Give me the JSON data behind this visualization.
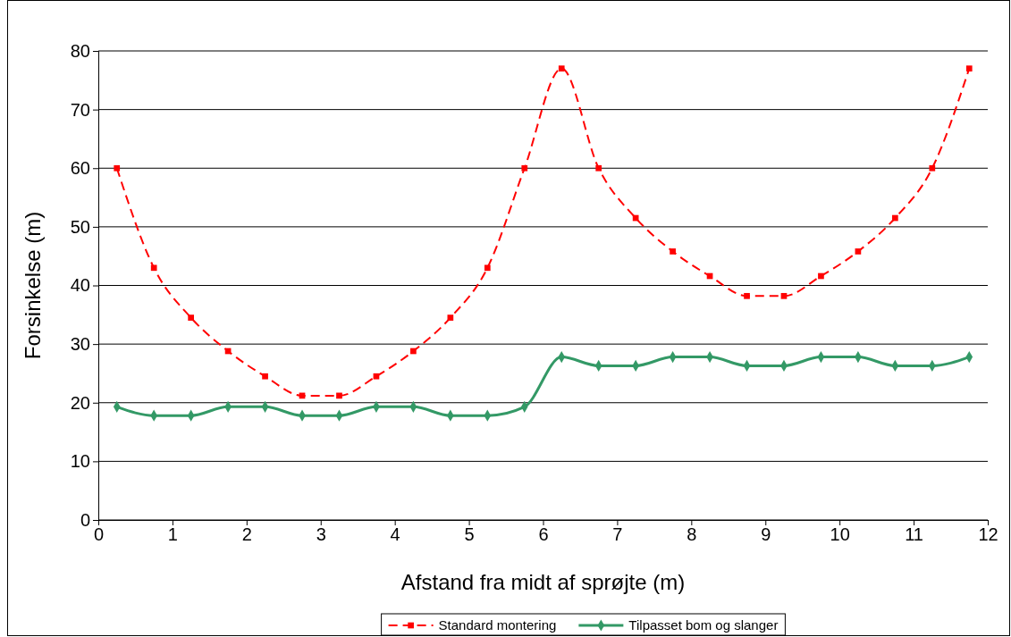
{
  "chart_data": {
    "type": "line",
    "xlabel": "Afstand fra midt af sprøjte (m)",
    "ylabel": "Forsinkelse (m)",
    "x": [
      0.25,
      0.75,
      1.25,
      1.75,
      2.25,
      2.75,
      3.25,
      3.75,
      4.25,
      4.75,
      5.25,
      5.75,
      6.25,
      6.75,
      7.25,
      7.75,
      8.25,
      8.75,
      9.25,
      9.75,
      10.25,
      10.75,
      11.25,
      11.75
    ],
    "xlim": [
      0,
      12
    ],
    "xticks": [
      0,
      1,
      2,
      3,
      4,
      5,
      6,
      7,
      8,
      9,
      10,
      11,
      12
    ],
    "ylim": [
      0,
      80
    ],
    "yticks": [
      0,
      10,
      20,
      30,
      40,
      50,
      60,
      70,
      80
    ],
    "grid": "y",
    "legend": "bottom",
    "series": [
      {
        "name": "Standard montering",
        "color": "#ff0000",
        "marker": "square",
        "line_style": "dashed",
        "values": [
          60,
          43,
          34.5,
          28.8,
          24.5,
          21.2,
          21.2,
          24.5,
          28.8,
          34.5,
          43,
          60,
          77,
          60,
          51.5,
          45.8,
          41.6,
          38.2,
          38.2,
          41.6,
          45.8,
          51.5,
          60,
          77
        ]
      },
      {
        "name": "Tilpasset bom og slanger",
        "color": "#339966",
        "marker": "diamond",
        "line_style": "solid",
        "values": [
          19.3,
          17.8,
          17.8,
          19.3,
          19.3,
          17.8,
          17.8,
          19.3,
          19.3,
          17.8,
          17.8,
          19.3,
          27.8,
          26.3,
          26.3,
          27.8,
          27.8,
          26.3,
          26.3,
          27.8,
          27.8,
          26.3,
          26.3,
          27.8
        ]
      }
    ]
  }
}
